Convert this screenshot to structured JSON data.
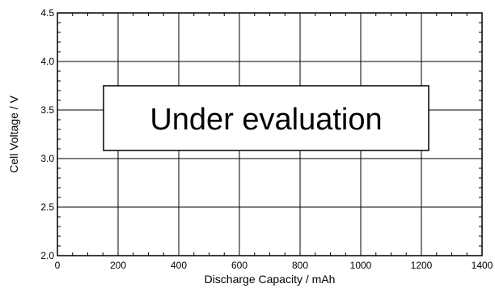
{
  "chart_data": {
    "type": "line",
    "title": "",
    "xlabel": "Discharge  Capacity  /  mAh",
    "ylabel": "Cell  Voltage  /  V",
    "xlim": [
      0,
      1400
    ],
    "ylim": [
      2.0,
      4.5
    ],
    "x_ticks": [
      0,
      200,
      400,
      600,
      800,
      1000,
      1200,
      1400
    ],
    "x_tick_labels": [
      "0",
      "200",
      "400",
      "600",
      "800",
      "1000",
      "1200",
      "1400"
    ],
    "y_ticks": [
      2.0,
      2.5,
      3.0,
      3.5,
      4.0,
      4.5
    ],
    "y_tick_labels": [
      "2.0",
      "2.5",
      "3.0",
      "3.5",
      "4.0",
      "4.5"
    ],
    "grid": true,
    "series": [],
    "annotation": "Under evaluation"
  }
}
